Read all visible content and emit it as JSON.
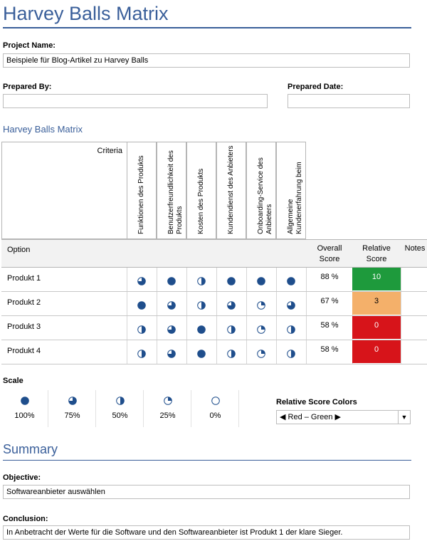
{
  "page": {
    "title": "Harvey Balls Matrix"
  },
  "project": {
    "name_label": "Project Name:",
    "name_value": "Beispiele für Blog-Artikel zu Harvey Balls",
    "prepared_by_label": "Prepared By:",
    "prepared_by_value": "",
    "prepared_date_label": "Prepared Date:",
    "prepared_date_value": ""
  },
  "matrix": {
    "section_title": "Harvey Balls Matrix",
    "criteria_label": "Criteria",
    "option_label": "Option",
    "overall_label": "Overall Score",
    "relative_label": "Relative Score",
    "notes_label": "Notes",
    "criteria": [
      "Funktionen des Produkts",
      "Benutzerfreundlichkeit des Produkts",
      "Kosten des Produkts",
      "Kundendienst des Anbieters",
      "Onboarding-Service des Anbieters",
      "Allgemeine Kundenerfahrung beim"
    ],
    "options": [
      {
        "name": "Produkt 1",
        "balls": [
          75,
          100,
          50,
          100,
          100,
          100
        ],
        "overall": "88 %",
        "relative": "10",
        "color": "#1e9a3c"
      },
      {
        "name": "Produkt 2",
        "balls": [
          100,
          75,
          50,
          75,
          25,
          75
        ],
        "overall": "67 %",
        "relative": "3",
        "color": "#f4b06a"
      },
      {
        "name": "Produkt 3",
        "balls": [
          50,
          75,
          100,
          50,
          25,
          50
        ],
        "overall": "58 %",
        "relative": "0",
        "color": "#d7141a"
      },
      {
        "name": "Produkt 4",
        "balls": [
          50,
          75,
          100,
          50,
          25,
          50
        ],
        "overall": "58 %",
        "relative": "0",
        "color": "#d7141a"
      }
    ]
  },
  "scale": {
    "label": "Scale",
    "items": [
      {
        "level": 100,
        "label": "100%"
      },
      {
        "level": 75,
        "label": "75%"
      },
      {
        "level": 50,
        "label": "50%"
      },
      {
        "level": 25,
        "label": "25%"
      },
      {
        "level": 0,
        "label": "0%"
      }
    ]
  },
  "relative_colors": {
    "label": "Relative Score Colors",
    "selected": "◀ Red – Green ▶"
  },
  "summary": {
    "title": "Summary",
    "objective_label": "Objective:",
    "objective_value": "Softwareanbieter auswählen",
    "conclusion_label": "Conclusion:",
    "conclusion_value": "In Anbetracht der Werte für die Software und den Softwareanbieter ist Produkt 1 der klare Sieger."
  },
  "colors": {
    "accent": "#3a5f9a",
    "ball": "#1f4e8c"
  }
}
